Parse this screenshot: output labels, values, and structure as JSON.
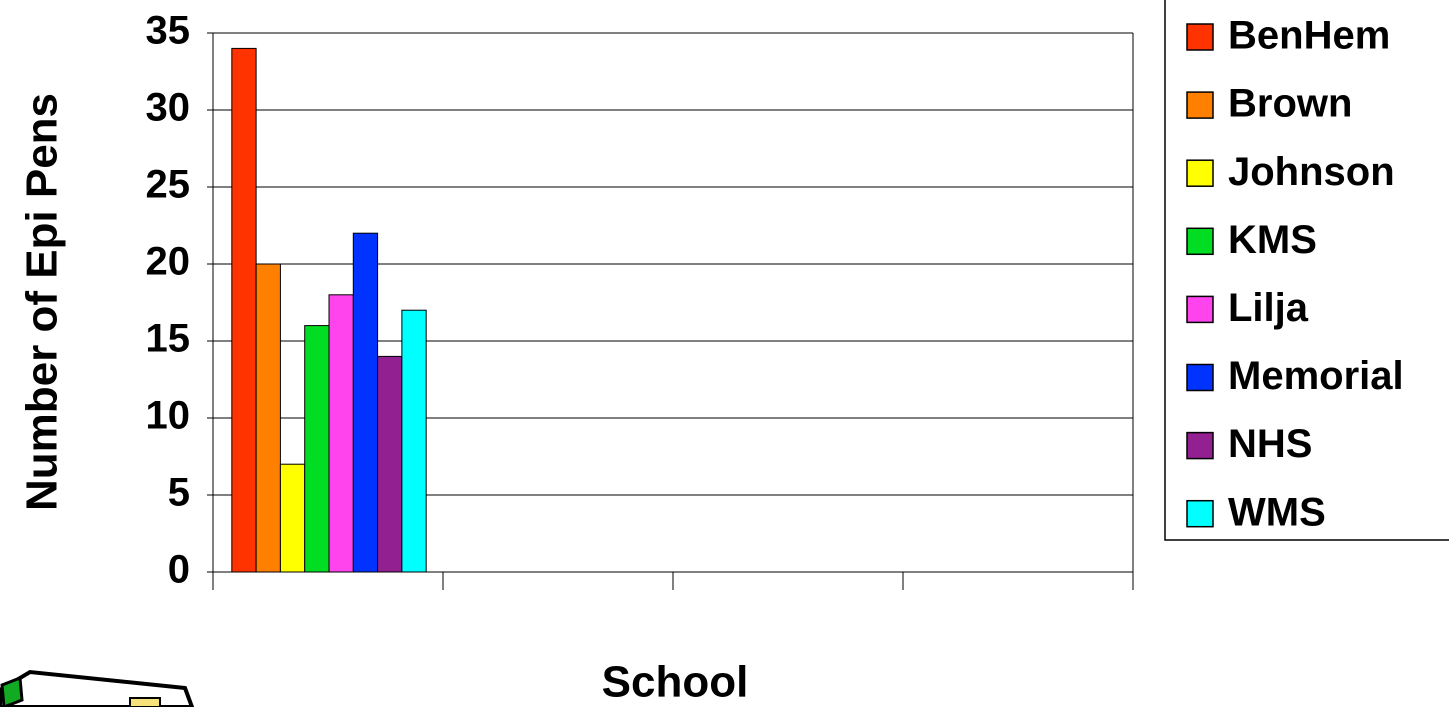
{
  "chart_data": {
    "type": "bar",
    "x_label": "School",
    "y_label": "Number of Epi Pens",
    "categories": [
      null,
      null,
      null,
      null
    ],
    "series": [
      {
        "name": "BenHem",
        "color": "#ff3300",
        "values": [
          34,
          null,
          null,
          null
        ]
      },
      {
        "name": "Brown",
        "color": "#ff7f00",
        "values": [
          20,
          null,
          null,
          null
        ]
      },
      {
        "name": "Johnson",
        "color": "#ffff00",
        "values": [
          7,
          null,
          null,
          null
        ]
      },
      {
        "name": "KMS",
        "color": "#00dd22",
        "values": [
          16,
          null,
          null,
          null
        ]
      },
      {
        "name": "Lilja",
        "color": "#ff44ee",
        "values": [
          18,
          null,
          null,
          null
        ]
      },
      {
        "name": "Memorial",
        "color": "#0033ff",
        "values": [
          22,
          null,
          null,
          null
        ]
      },
      {
        "name": "NHS",
        "color": "#922090",
        "values": [
          14,
          null,
          null,
          null
        ]
      },
      {
        "name": "WMS",
        "color": "#00ffff",
        "values": [
          17,
          null,
          null,
          null
        ]
      }
    ],
    "ylim": [
      0,
      35
    ],
    "yticks": [
      0,
      5,
      10,
      15,
      20,
      25,
      30,
      35
    ],
    "grid": true,
    "legend": "right"
  }
}
